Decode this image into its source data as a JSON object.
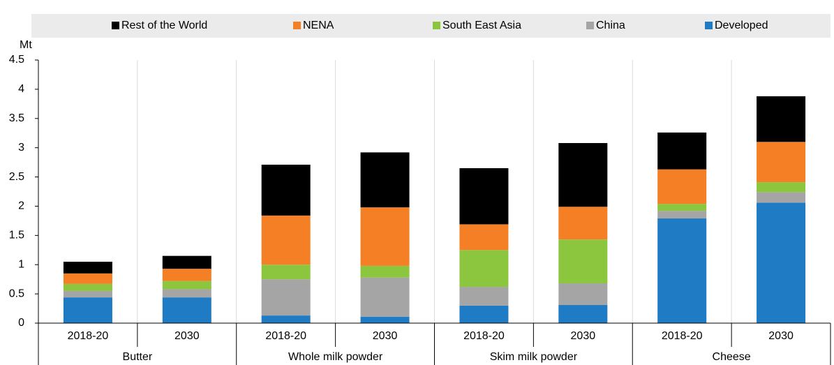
{
  "chart_data": {
    "type": "stacked_bar",
    "y_label": "Mt",
    "groups": [
      "Butter",
      "Whole milk powder",
      "Skim milk powder",
      "Cheese"
    ],
    "categories": [
      "2018-20",
      "2030",
      "2018-20",
      "2030",
      "2018-20",
      "2030",
      "2018-20",
      "2030"
    ],
    "series": [
      {
        "name": "Developed",
        "color": "#1f7bc4",
        "values": [
          0.44,
          0.44,
          0.13,
          0.11,
          0.3,
          0.31,
          1.79,
          2.06
        ]
      },
      {
        "name": "China",
        "color": "#a5a5a5",
        "values": [
          0.11,
          0.14,
          0.62,
          0.67,
          0.32,
          0.37,
          0.13,
          0.18
        ]
      },
      {
        "name": "South East Asia",
        "color": "#8cc63f",
        "values": [
          0.12,
          0.14,
          0.25,
          0.2,
          0.63,
          0.75,
          0.12,
          0.17
        ]
      },
      {
        "name": "NENA",
        "color": "#f47f24",
        "values": [
          0.18,
          0.21,
          0.84,
          1.0,
          0.44,
          0.56,
          0.59,
          0.69
        ]
      },
      {
        "name": "Rest of the World",
        "color": "#000000",
        "values": [
          0.2,
          0.22,
          0.87,
          0.94,
          0.96,
          1.09,
          0.63,
          0.78
        ]
      }
    ],
    "ylim": [
      0,
      4.5
    ],
    "yticks": [
      0,
      0.5,
      1,
      1.5,
      2,
      2.5,
      3,
      3.5,
      4,
      4.5
    ]
  }
}
